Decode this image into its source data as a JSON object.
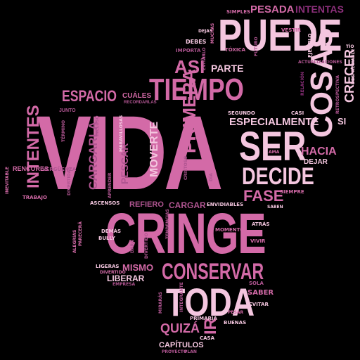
{
  "colors": {
    "light_pink": "#f4c6df",
    "pink": "#d36aa7",
    "mauve": "#b05591",
    "purple": "#8b2f7a",
    "dark_purple": "#6a1f5c",
    "background": "#000000"
  },
  "words": {
    "vida": "VIDA",
    "cringe": "CRINGE",
    "puede": "PUEDE",
    "tiempo": "TIEMPO",
    "ser": "SER",
    "toda": "TODA",
    "decide": "DECIDE",
    "conservar": "CONSERVAR",
    "cosas": "COSAS",
    "espacio": "ESPACIO",
    "primera": "PRIMERA",
    "especialmente": "ESPECIALMENTE",
    "intentes": "INTENTES",
    "fase": "FASE",
    "hacia": "HACIA",
    "así": "ASÍ",
    "pesada": "PESADA",
    "intentas": "INTENTAS",
    "parte": "PARTE",
    "moverte": "MOVERTE",
    "cargarla": "CARGARLA",
    "quizá": "QUIZÁ",
    "ir": "IR",
    "crecer": "CRECER",
    "pescar": "PESCAR",
    "refiero": "REFIERO",
    "cargar": "CARGAR",
    "mismo": "MISMO",
    "liberar": "LIBERAR",
    "capítulos": "CAPÍTULOS",
    "si": "SI",
    "rencores": "RENCORES",
    "dejar": "DEJAR",
    "cuáles": "CUÁLES",
    "recordarlas": "RECORDARLAS",
    "junto": "JUNTO",
    "dejas": "DEJAS",
    "simples": "SIMPLES",
    "debes": "DEBES",
    "importa": "IMPORTA",
    "evitarlo": "EVITARLO",
    "tóxica": "TÓXICA",
    "futuro": "FUTURO",
    "vestir": "VESTIR",
    "muchas": "MUCHAS",
    "ejemplo": "EJEMPLO",
    "tío": "TÍO",
    "actualizaciones": "ACTUALIZACIONES",
    "despreciable": "DESPRECIABLE",
    "retrospectiva": "RETROSPECTIVA",
    "relación": "RELACIÓN",
    "segundo": "SEGUNDO",
    "casi": "CASI",
    "término": "TÉRMINO",
    "incluso": "INCLUSO",
    "maravillosas": "MARAVILLOSAS",
    "inevitable": "INEVITABLE",
    "vergüenza": "VERGÜENZA",
    "trabajo": "TRABAJO",
    "divertidas": "DIVERTIDAS",
    "aprender": "APRENDER",
    "ascensos": "ASCENSOS",
    "cristo": "CRISTOSO",
    "día": "DÍA",
    "envidiables": "ENVIDIABLES",
    "ama": "AMA",
    "siempre": "SIEMPRE",
    "saben": "SABEN",
    "atrás": "ATRÁS",
    "momento": "MOMENTO",
    "vivir": "VIVIR",
    "alegrías": "ALEGRÍAS",
    "parecerá": "PARECERÁ",
    "demás": "DEMÁS",
    "bully": "BULLY",
    "tendencias": "TENDENCIAS",
    "dará": "DARÁ",
    "divertido": "DIVERTIDO",
    "ligeras": "LIGERAS",
    "divertido2": "DIVERTIDO",
    "empresa": "EMPRESA",
    "sola": "SOLA",
    "saber": "SABER",
    "evitar": "EVITAR",
    "mirarás": "MIRARÁS",
    "primaria": "PRIMARIA",
    "buenas": "BUENAS",
    "proyecto": "PROYECTO",
    "casa": "CASA",
    "pesar": "PESAR",
    "integrante": "INTEGRANTE",
    "plan": "PLAN"
  }
}
